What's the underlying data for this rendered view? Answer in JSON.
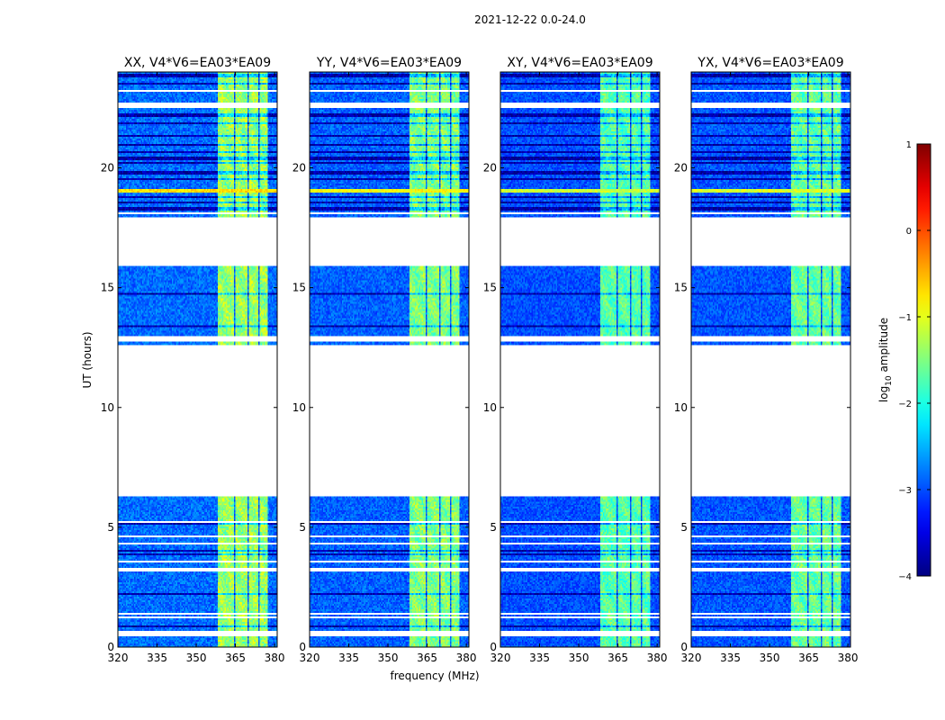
{
  "chart_data": {
    "type": "heatmap",
    "title": "2021-12-22 0.0-24.0",
    "xlabel": "frequency (MHz)",
    "ylabel": "UT (hours)",
    "xlim": [
      320,
      381
    ],
    "ylim": [
      0,
      24
    ],
    "xticks": [
      "320",
      "335",
      "350",
      "365",
      "380"
    ],
    "xtick_values": [
      320,
      335,
      350,
      365,
      380
    ],
    "yticks": [
      "0",
      "5",
      "10",
      "15",
      "20"
    ],
    "ytick_values": [
      0,
      5,
      10,
      15,
      20
    ],
    "panels": [
      {
        "title": "XX, V4*V6=EA03*EA09",
        "brightness": 1.05
      },
      {
        "title": "YY, V4*V6=EA03*EA09",
        "brightness": 1.0
      },
      {
        "title": "XY, V4*V6=EA03*EA09",
        "brightness": 0.92
      },
      {
        "title": "YX, V4*V6=EA03*EA09",
        "brightness": 0.95
      }
    ],
    "background_log_amplitude": -2.9,
    "bright_band_mhz": [
      358.5,
      377.5
    ],
    "bright_band_log_amplitude": -1.5,
    "band_gaps_mhz": [
      [
        364.4,
        365.2
      ],
      [
        369.6,
        370.3
      ],
      [
        373.6,
        374.3
      ]
    ],
    "hot_line_ut": [
      [
        18.95,
        19.1,
        -0.9
      ]
    ],
    "data_gaps_ut": [
      [
        0.45,
        0.68
      ],
      [
        1.2,
        1.3
      ],
      [
        1.38,
        1.46
      ],
      [
        1.92,
        1.98
      ],
      [
        3.18,
        3.3
      ],
      [
        3.5,
        3.57
      ],
      [
        4.25,
        4.32
      ],
      [
        4.58,
        4.64
      ],
      [
        5.2,
        5.25
      ],
      [
        6.3,
        12.6
      ],
      [
        12.75,
        12.95
      ],
      [
        15.9,
        17.9
      ],
      [
        18.05,
        18.12
      ],
      [
        22.52,
        22.72
      ],
      [
        23.2,
        23.28
      ]
    ],
    "dark_rows_ut": [
      [
        0.85,
        0.9
      ],
      [
        2.2,
        2.25
      ],
      [
        3.85,
        3.9
      ],
      [
        4.0,
        4.05
      ],
      [
        4.85,
        4.9
      ],
      [
        5.1,
        5.15
      ],
      [
        5.45,
        5.5
      ],
      [
        6.05,
        6.1
      ],
      [
        13.35,
        13.4
      ],
      [
        14.15,
        14.2
      ],
      [
        14.7,
        14.75
      ],
      [
        18.2,
        18.35
      ],
      [
        18.5,
        18.6
      ],
      [
        18.75,
        18.85
      ],
      [
        19.5,
        19.55
      ],
      [
        19.75,
        19.85
      ],
      [
        20.15,
        20.25
      ],
      [
        20.35,
        20.45
      ],
      [
        20.6,
        20.7
      ],
      [
        20.9,
        21.0
      ],
      [
        21.3,
        21.4
      ],
      [
        21.8,
        21.9
      ],
      [
        22.15,
        22.25
      ],
      [
        23.45,
        23.55
      ],
      [
        23.8,
        23.9
      ]
    ],
    "colorbar": {
      "label_prefix": "log",
      "label_subscript": "10",
      "label_suffix": " amplitude",
      "vmin": -4,
      "vmax": 1,
      "ticks": [
        "1",
        "0",
        "−1",
        "−2",
        "−3",
        "−4"
      ],
      "tick_values": [
        1,
        0,
        -1,
        -2,
        -3,
        -4
      ],
      "colormap": "jet"
    }
  }
}
